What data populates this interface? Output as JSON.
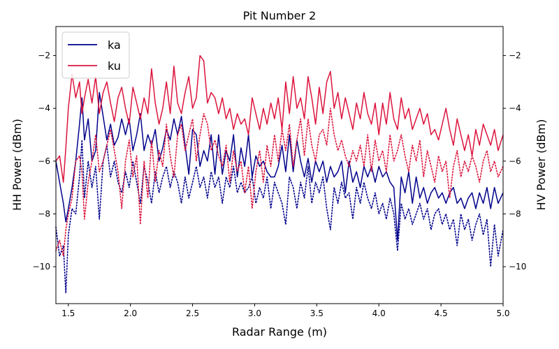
{
  "chart_data": {
    "type": "line",
    "title": "Pit Number 2",
    "xlabel": "Radar Range (m)",
    "ylabel_left": "HH Power (dBm)",
    "ylabel_right": "HV Power (dBm)",
    "xlim": [
      1.4,
      5.0
    ],
    "ylim_left": [
      -11.4,
      -0.9
    ],
    "ylim_right": [
      -11.4,
      -0.9
    ],
    "x_ticks": [
      1.5,
      2.0,
      2.5,
      3.0,
      3.5,
      4.0,
      4.5,
      5.0
    ],
    "x_tick_labels": [
      "1.5",
      "2.0",
      "2.5",
      "3.0",
      "3.5",
      "4.0",
      "4.5",
      "5.0"
    ],
    "y_ticks": [
      -10,
      -8,
      -6,
      -4,
      -2
    ],
    "y_tick_labels": [
      "−10",
      "−8",
      "−6",
      "−4",
      "−2"
    ],
    "y_right_ticks": [
      -10,
      -8,
      -6,
      -4,
      -2
    ],
    "y_right_tick_labels": [
      "−10",
      "−8",
      "−6",
      "−4",
      "−2"
    ],
    "legend": {
      "placement": "upper-left",
      "entries": [
        "ka",
        "ku"
      ]
    },
    "grid": false,
    "colors": {
      "ka": "#00008b",
      "ku": "#dc143c"
    },
    "series": [
      {
        "name": "ka",
        "axis": "left",
        "style": "solid",
        "color": "#00008b",
        "x": [
          1.4,
          1.43,
          1.46,
          1.48,
          1.5,
          1.53,
          1.56,
          1.59,
          1.61,
          1.63,
          1.66,
          1.69,
          1.72,
          1.75,
          1.78,
          1.81,
          1.84,
          1.87,
          1.9,
          1.93,
          1.96,
          1.99,
          2.02,
          2.05,
          2.08,
          2.11,
          2.14,
          2.17,
          2.2,
          2.23,
          2.26,
          2.29,
          2.32,
          2.35,
          2.38,
          2.41,
          2.44,
          2.47,
          2.5,
          2.53,
          2.56,
          2.59,
          2.62,
          2.65,
          2.68,
          2.71,
          2.74,
          2.77,
          2.8,
          2.83,
          2.86,
          2.89,
          2.92,
          2.95,
          2.98,
          3.01,
          3.04,
          3.07,
          3.1,
          3.13,
          3.16,
          3.19,
          3.22,
          3.25,
          3.28,
          3.31,
          3.34,
          3.37,
          3.4,
          3.43,
          3.46,
          3.49,
          3.52,
          3.55,
          3.58,
          3.61,
          3.64,
          3.67,
          3.7,
          3.73,
          3.76,
          3.79,
          3.82,
          3.85,
          3.88,
          3.91,
          3.94,
          3.97,
          4.0,
          4.03,
          4.06,
          4.09,
          4.12,
          4.15,
          4.18,
          4.21,
          4.24,
          4.27,
          4.3,
          4.33,
          4.36,
          4.39,
          4.42,
          4.45,
          4.48,
          4.51,
          4.54,
          4.57,
          4.6,
          4.63,
          4.66,
          4.69,
          4.72,
          4.75,
          4.78,
          4.81,
          4.84,
          4.87,
          4.9,
          4.93,
          4.96,
          5.0
        ],
        "y": [
          -6.0,
          -6.8,
          -7.6,
          -8.3,
          -7.8,
          -7.0,
          -6.0,
          -4.6,
          -3.6,
          -5.2,
          -4.4,
          -6.0,
          -5.6,
          -3.4,
          -4.3,
          -5.2,
          -4.6,
          -5.4,
          -5.1,
          -4.4,
          -5.0,
          -4.4,
          -5.6,
          -5.0,
          -4.2,
          -5.6,
          -5.0,
          -5.4,
          -4.8,
          -6.0,
          -5.5,
          -4.8,
          -5.2,
          -4.4,
          -5.0,
          -4.3,
          -5.4,
          -6.5,
          -4.8,
          -5.0,
          -6.2,
          -5.6,
          -6.0,
          -5.0,
          -6.5,
          -5.0,
          -6.5,
          -5.6,
          -6.0,
          -5.0,
          -6.6,
          -5.5,
          -6.2,
          -5.0,
          -6.6,
          -5.8,
          -6.2,
          -6.0,
          -6.4,
          -6.6,
          -6.6,
          -6.2,
          -5.4,
          -6.4,
          -5.0,
          -6.4,
          -5.2,
          -6.0,
          -6.6,
          -5.9,
          -6.8,
          -6.0,
          -6.4,
          -6.0,
          -6.8,
          -6.2,
          -6.6,
          -6.4,
          -6.0,
          -7.2,
          -6.0,
          -6.8,
          -6.4,
          -7.0,
          -6.2,
          -6.6,
          -6.2,
          -6.8,
          -6.2,
          -6.6,
          -6.4,
          -6.8,
          -7.0,
          -9.0,
          -6.6,
          -7.2,
          -6.4,
          -7.6,
          -6.6,
          -7.4,
          -7.0,
          -7.6,
          -7.2,
          -7.0,
          -7.4,
          -7.2,
          -7.6,
          -7.2,
          -7.0,
          -7.6,
          -7.4,
          -7.8,
          -7.4,
          -7.2,
          -7.8,
          -7.2,
          -7.6,
          -7.0,
          -7.8,
          -7.0,
          -7.6,
          -7.2
        ]
      },
      {
        "name": "ku",
        "axis": "left",
        "style": "solid",
        "color": "#dc143c",
        "x": [
          1.4,
          1.43,
          1.46,
          1.48,
          1.5,
          1.53,
          1.56,
          1.59,
          1.61,
          1.63,
          1.66,
          1.69,
          1.72,
          1.75,
          1.78,
          1.81,
          1.84,
          1.87,
          1.9,
          1.93,
          1.96,
          1.99,
          2.02,
          2.05,
          2.08,
          2.11,
          2.14,
          2.17,
          2.2,
          2.23,
          2.26,
          2.29,
          2.32,
          2.35,
          2.38,
          2.41,
          2.44,
          2.47,
          2.5,
          2.53,
          2.56,
          2.59,
          2.62,
          2.65,
          2.68,
          2.71,
          2.74,
          2.77,
          2.8,
          2.83,
          2.86,
          2.89,
          2.92,
          2.95,
          2.98,
          3.01,
          3.04,
          3.07,
          3.1,
          3.13,
          3.16,
          3.19,
          3.22,
          3.25,
          3.28,
          3.31,
          3.34,
          3.37,
          3.4,
          3.43,
          3.46,
          3.49,
          3.52,
          3.55,
          3.58,
          3.61,
          3.64,
          3.67,
          3.7,
          3.73,
          3.76,
          3.79,
          3.82,
          3.85,
          3.88,
          3.91,
          3.94,
          3.97,
          4.0,
          4.03,
          4.06,
          4.09,
          4.12,
          4.15,
          4.18,
          4.21,
          4.24,
          4.27,
          4.3,
          4.33,
          4.36,
          4.39,
          4.42,
          4.45,
          4.48,
          4.51,
          4.54,
          4.57,
          4.6,
          4.63,
          4.66,
          4.69,
          4.72,
          4.75,
          4.78,
          4.81,
          4.84,
          4.87,
          4.9,
          4.93,
          4.96,
          5.0
        ],
        "y": [
          -6.0,
          -5.8,
          -6.8,
          -5.5,
          -4.0,
          -2.7,
          -3.6,
          -3.0,
          -4.2,
          -3.6,
          -2.9,
          -3.8,
          -2.8,
          -4.2,
          -3.4,
          -3.0,
          -3.8,
          -4.5,
          -3.6,
          -3.2,
          -4.0,
          -4.6,
          -3.2,
          -3.8,
          -4.4,
          -3.6,
          -4.2,
          -2.5,
          -3.8,
          -4.6,
          -4.0,
          -3.0,
          -4.2,
          -2.4,
          -3.8,
          -4.2,
          -3.4,
          -2.8,
          -4.0,
          -3.6,
          -2.0,
          -2.2,
          -3.8,
          -3.4,
          -3.6,
          -4.2,
          -3.6,
          -4.4,
          -4.0,
          -4.8,
          -4.2,
          -4.6,
          -4.4,
          -5.0,
          -3.6,
          -4.2,
          -4.8,
          -4.0,
          -4.6,
          -3.8,
          -4.4,
          -3.6,
          -4.8,
          -3.0,
          -4.2,
          -2.8,
          -4.0,
          -3.6,
          -4.4,
          -2.8,
          -3.6,
          -4.6,
          -3.2,
          -4.2,
          -3.0,
          -2.6,
          -4.0,
          -3.4,
          -4.4,
          -3.6,
          -4.2,
          -4.8,
          -3.8,
          -4.4,
          -3.4,
          -4.2,
          -4.6,
          -3.8,
          -5.0,
          -3.8,
          -4.6,
          -3.4,
          -4.4,
          -4.8,
          -3.6,
          -4.4,
          -4.0,
          -4.8,
          -4.4,
          -4.0,
          -4.6,
          -4.2,
          -5.0,
          -4.8,
          -5.2,
          -4.6,
          -4.0,
          -4.8,
          -5.4,
          -4.4,
          -5.0,
          -5.6,
          -5.0,
          -5.8,
          -4.8,
          -5.4,
          -4.6,
          -5.0,
          -5.4,
          -4.8,
          -5.6,
          -5.0
        ]
      },
      {
        "name": "ka",
        "axis": "right",
        "style": "dotted",
        "color": "#00008b",
        "x": [
          1.4,
          1.43,
          1.46,
          1.48,
          1.5,
          1.53,
          1.56,
          1.59,
          1.61,
          1.63,
          1.66,
          1.69,
          1.72,
          1.75,
          1.78,
          1.81,
          1.84,
          1.87,
          1.9,
          1.93,
          1.96,
          1.99,
          2.02,
          2.05,
          2.08,
          2.11,
          2.14,
          2.17,
          2.2,
          2.23,
          2.26,
          2.29,
          2.32,
          2.35,
          2.38,
          2.41,
          2.44,
          2.47,
          2.5,
          2.53,
          2.56,
          2.59,
          2.62,
          2.65,
          2.68,
          2.71,
          2.74,
          2.77,
          2.8,
          2.83,
          2.86,
          2.89,
          2.92,
          2.95,
          2.98,
          3.01,
          3.04,
          3.07,
          3.1,
          3.13,
          3.16,
          3.19,
          3.22,
          3.25,
          3.28,
          3.31,
          3.34,
          3.37,
          3.4,
          3.43,
          3.46,
          3.49,
          3.52,
          3.55,
          3.58,
          3.61,
          3.64,
          3.67,
          3.7,
          3.73,
          3.76,
          3.79,
          3.82,
          3.85,
          3.88,
          3.91,
          3.94,
          3.97,
          4.0,
          4.03,
          4.06,
          4.09,
          4.12,
          4.15,
          4.18,
          4.21,
          4.24,
          4.27,
          4.3,
          4.33,
          4.36,
          4.39,
          4.42,
          4.45,
          4.48,
          4.51,
          4.54,
          4.57,
          4.6,
          4.63,
          4.66,
          4.69,
          4.72,
          4.75,
          4.78,
          4.81,
          4.84,
          4.87,
          4.9,
          4.93,
          4.96,
          5.0
        ],
        "y": [
          -8.5,
          -9.6,
          -9.2,
          -11.0,
          -8.8,
          -7.8,
          -8.0,
          -6.6,
          -5.2,
          -7.4,
          -6.0,
          -7.0,
          -6.2,
          -8.2,
          -6.0,
          -5.4,
          -6.6,
          -6.0,
          -6.8,
          -7.2,
          -6.4,
          -7.0,
          -6.0,
          -6.8,
          -7.6,
          -6.2,
          -6.8,
          -7.6,
          -6.4,
          -7.2,
          -6.6,
          -6.2,
          -7.0,
          -6.4,
          -6.8,
          -7.6,
          -6.6,
          -7.4,
          -6.8,
          -6.2,
          -7.0,
          -6.6,
          -7.4,
          -6.4,
          -7.0,
          -6.6,
          -7.6,
          -6.6,
          -7.0,
          -6.2,
          -7.2,
          -6.8,
          -7.2,
          -7.0,
          -6.6,
          -7.6,
          -7.0,
          -7.4,
          -6.6,
          -7.8,
          -6.8,
          -7.2,
          -7.6,
          -8.4,
          -6.6,
          -7.0,
          -7.8,
          -6.8,
          -7.4,
          -6.2,
          -7.6,
          -6.8,
          -7.2,
          -6.6,
          -7.8,
          -8.6,
          -7.0,
          -7.6,
          -6.8,
          -7.4,
          -7.2,
          -8.2,
          -7.0,
          -7.6,
          -6.8,
          -7.4,
          -7.8,
          -7.2,
          -8.0,
          -7.6,
          -8.2,
          -7.4,
          -8.0,
          -9.4,
          -7.6,
          -8.2,
          -7.8,
          -8.4,
          -8.0,
          -7.6,
          -8.2,
          -7.8,
          -8.6,
          -8.0,
          -7.8,
          -8.4,
          -8.0,
          -8.6,
          -8.2,
          -9.2,
          -8.0,
          -8.6,
          -8.2,
          -9.0,
          -8.4,
          -8.0,
          -8.8,
          -8.2,
          -10.0,
          -8.4,
          -9.6,
          -8.6
        ]
      },
      {
        "name": "ku",
        "axis": "right",
        "style": "dotted",
        "color": "#dc143c",
        "x": [
          1.4,
          1.43,
          1.46,
          1.48,
          1.5,
          1.53,
          1.56,
          1.59,
          1.61,
          1.63,
          1.66,
          1.69,
          1.72,
          1.75,
          1.78,
          1.81,
          1.84,
          1.87,
          1.9,
          1.93,
          1.96,
          1.99,
          2.02,
          2.05,
          2.08,
          2.11,
          2.14,
          2.17,
          2.2,
          2.23,
          2.26,
          2.29,
          2.32,
          2.35,
          2.38,
          2.41,
          2.44,
          2.47,
          2.5,
          2.53,
          2.56,
          2.59,
          2.62,
          2.65,
          2.68,
          2.71,
          2.74,
          2.77,
          2.8,
          2.83,
          2.86,
          2.89,
          2.92,
          2.95,
          2.98,
          3.01,
          3.04,
          3.07,
          3.1,
          3.13,
          3.16,
          3.19,
          3.22,
          3.25,
          3.28,
          3.31,
          3.34,
          3.37,
          3.4,
          3.43,
          3.46,
          3.49,
          3.52,
          3.55,
          3.58,
          3.61,
          3.64,
          3.67,
          3.7,
          3.73,
          3.76,
          3.79,
          3.82,
          3.85,
          3.88,
          3.91,
          3.94,
          3.97,
          4.0,
          4.03,
          4.06,
          4.09,
          4.12,
          4.15,
          4.18,
          4.21,
          4.24,
          4.27,
          4.3,
          4.33,
          4.36,
          4.39,
          4.42,
          4.45,
          4.48,
          4.51,
          4.54,
          4.57,
          4.6,
          4.63,
          4.66,
          4.69,
          4.72,
          4.75,
          4.78,
          4.81,
          4.84,
          4.87,
          4.9,
          4.93,
          4.96,
          5.0
        ],
        "y": [
          -9.4,
          -9.0,
          -9.6,
          -8.6,
          -8.0,
          -7.4,
          -6.0,
          -5.8,
          -6.4,
          -8.2,
          -6.8,
          -6.0,
          -5.0,
          -6.4,
          -6.0,
          -5.4,
          -4.8,
          -5.6,
          -6.4,
          -7.8,
          -6.0,
          -5.2,
          -6.6,
          -5.8,
          -8.4,
          -6.0,
          -7.4,
          -5.2,
          -6.8,
          -5.6,
          -6.2,
          -4.6,
          -5.8,
          -6.6,
          -5.0,
          -4.6,
          -5.6,
          -5.0,
          -4.4,
          -6.0,
          -5.0,
          -4.2,
          -4.6,
          -5.6,
          -5.2,
          -5.8,
          -6.2,
          -5.4,
          -6.8,
          -5.6,
          -6.4,
          -6.0,
          -7.2,
          -6.2,
          -7.8,
          -6.4,
          -5.6,
          -6.8,
          -5.4,
          -6.2,
          -5.0,
          -6.0,
          -4.8,
          -5.6,
          -4.6,
          -6.2,
          -5.2,
          -4.4,
          -5.8,
          -4.4,
          -5.4,
          -6.0,
          -5.0,
          -4.8,
          -5.4,
          -4.0,
          -5.0,
          -5.6,
          -5.2,
          -5.8,
          -6.2,
          -5.6,
          -6.0,
          -5.4,
          -6.2,
          -5.0,
          -6.4,
          -5.2,
          -6.0,
          -5.6,
          -6.4,
          -5.0,
          -6.0,
          -5.6,
          -5.0,
          -5.8,
          -6.4,
          -5.4,
          -6.0,
          -5.2,
          -6.6,
          -5.6,
          -6.2,
          -6.8,
          -5.8,
          -6.4,
          -6.0,
          -7.4,
          -6.2,
          -5.6,
          -6.6,
          -6.0,
          -6.4,
          -5.8,
          -6.2,
          -6.8,
          -6.0,
          -5.6,
          -6.4,
          -6.0,
          -6.6,
          -6.2
        ]
      }
    ]
  }
}
